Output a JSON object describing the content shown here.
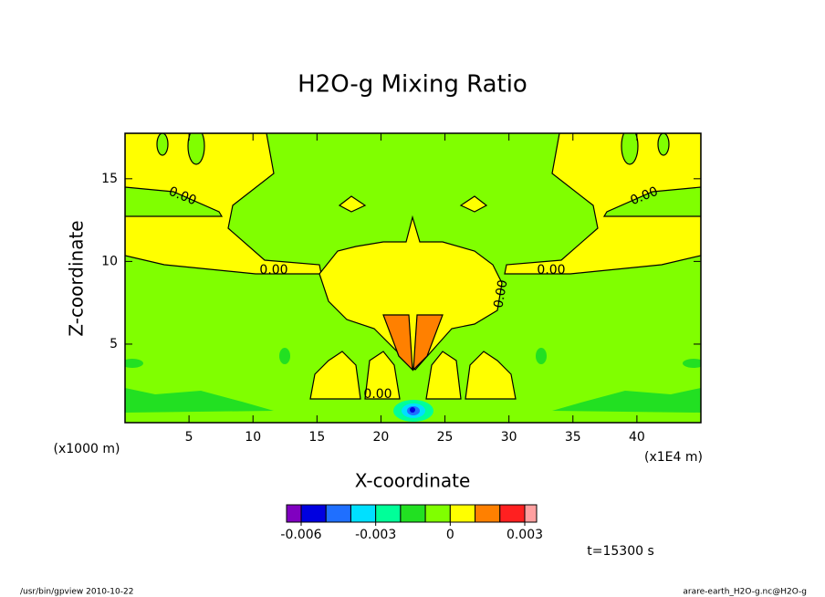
{
  "chart_data": {
    "type": "contour",
    "title": "H2O-g Mixing Ratio",
    "x_label": "X-coordinate",
    "y_label": "Z-coordinate",
    "x_unit": "(x1E4 m)",
    "y_unit": "(x1000 m)",
    "xlim": [
      0,
      45
    ],
    "ylim": [
      0.25,
      17.75
    ],
    "xticks": [
      5,
      10,
      15,
      20,
      25,
      30,
      35,
      40
    ],
    "yticks": [
      5,
      10,
      15
    ],
    "contour_labels": [
      "0.00",
      "0.00",
      "0.00",
      "0.00",
      "0.00",
      "0.00"
    ],
    "colorbar": {
      "levels": [
        -0.006,
        -0.005,
        -0.004,
        -0.003,
        -0.002,
        -0.001,
        0,
        0.001,
        0.002,
        0.003
      ],
      "colors": [
        "#8000c0",
        "#0000e0",
        "#1f6fff",
        "#00e0ff",
        "#00ff99",
        "#22e022",
        "#80ff00",
        "#ffff00",
        "#ff8000",
        "#ff2020",
        "#ffa0a0"
      ],
      "ticks": [
        -0.006,
        -0.003,
        0,
        0.003
      ]
    },
    "time_label": "t=15300 s",
    "footer_left": "/usr/bin/gpview  2010-10-22",
    "footer_right": "arare-earth_H2O-g.nc@H2O-g"
  }
}
